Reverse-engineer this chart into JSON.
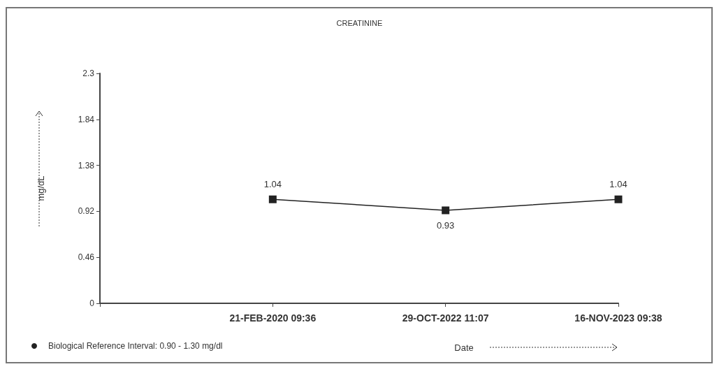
{
  "chart_data": {
    "type": "line",
    "title": "CREATININE",
    "xlabel": "Date",
    "ylabel": "mg/dL",
    "categories": [
      "21-FEB-2020 09:36",
      "29-OCT-2022 11:07",
      "16-NOV-2023 09:38"
    ],
    "series": [
      {
        "name": "Biological Reference Interval: 0.90 - 1.30 mg/dl",
        "color": "#222222",
        "values": [
          1.04,
          0.93,
          1.04
        ]
      }
    ],
    "ylim": [
      0,
      2.3
    ],
    "yticks": [
      0,
      0.46,
      0.92,
      1.38,
      1.84,
      2.3
    ],
    "data_labels": true,
    "marker": "square",
    "line_style": "solid",
    "grid": false,
    "legend": "bottom left"
  }
}
